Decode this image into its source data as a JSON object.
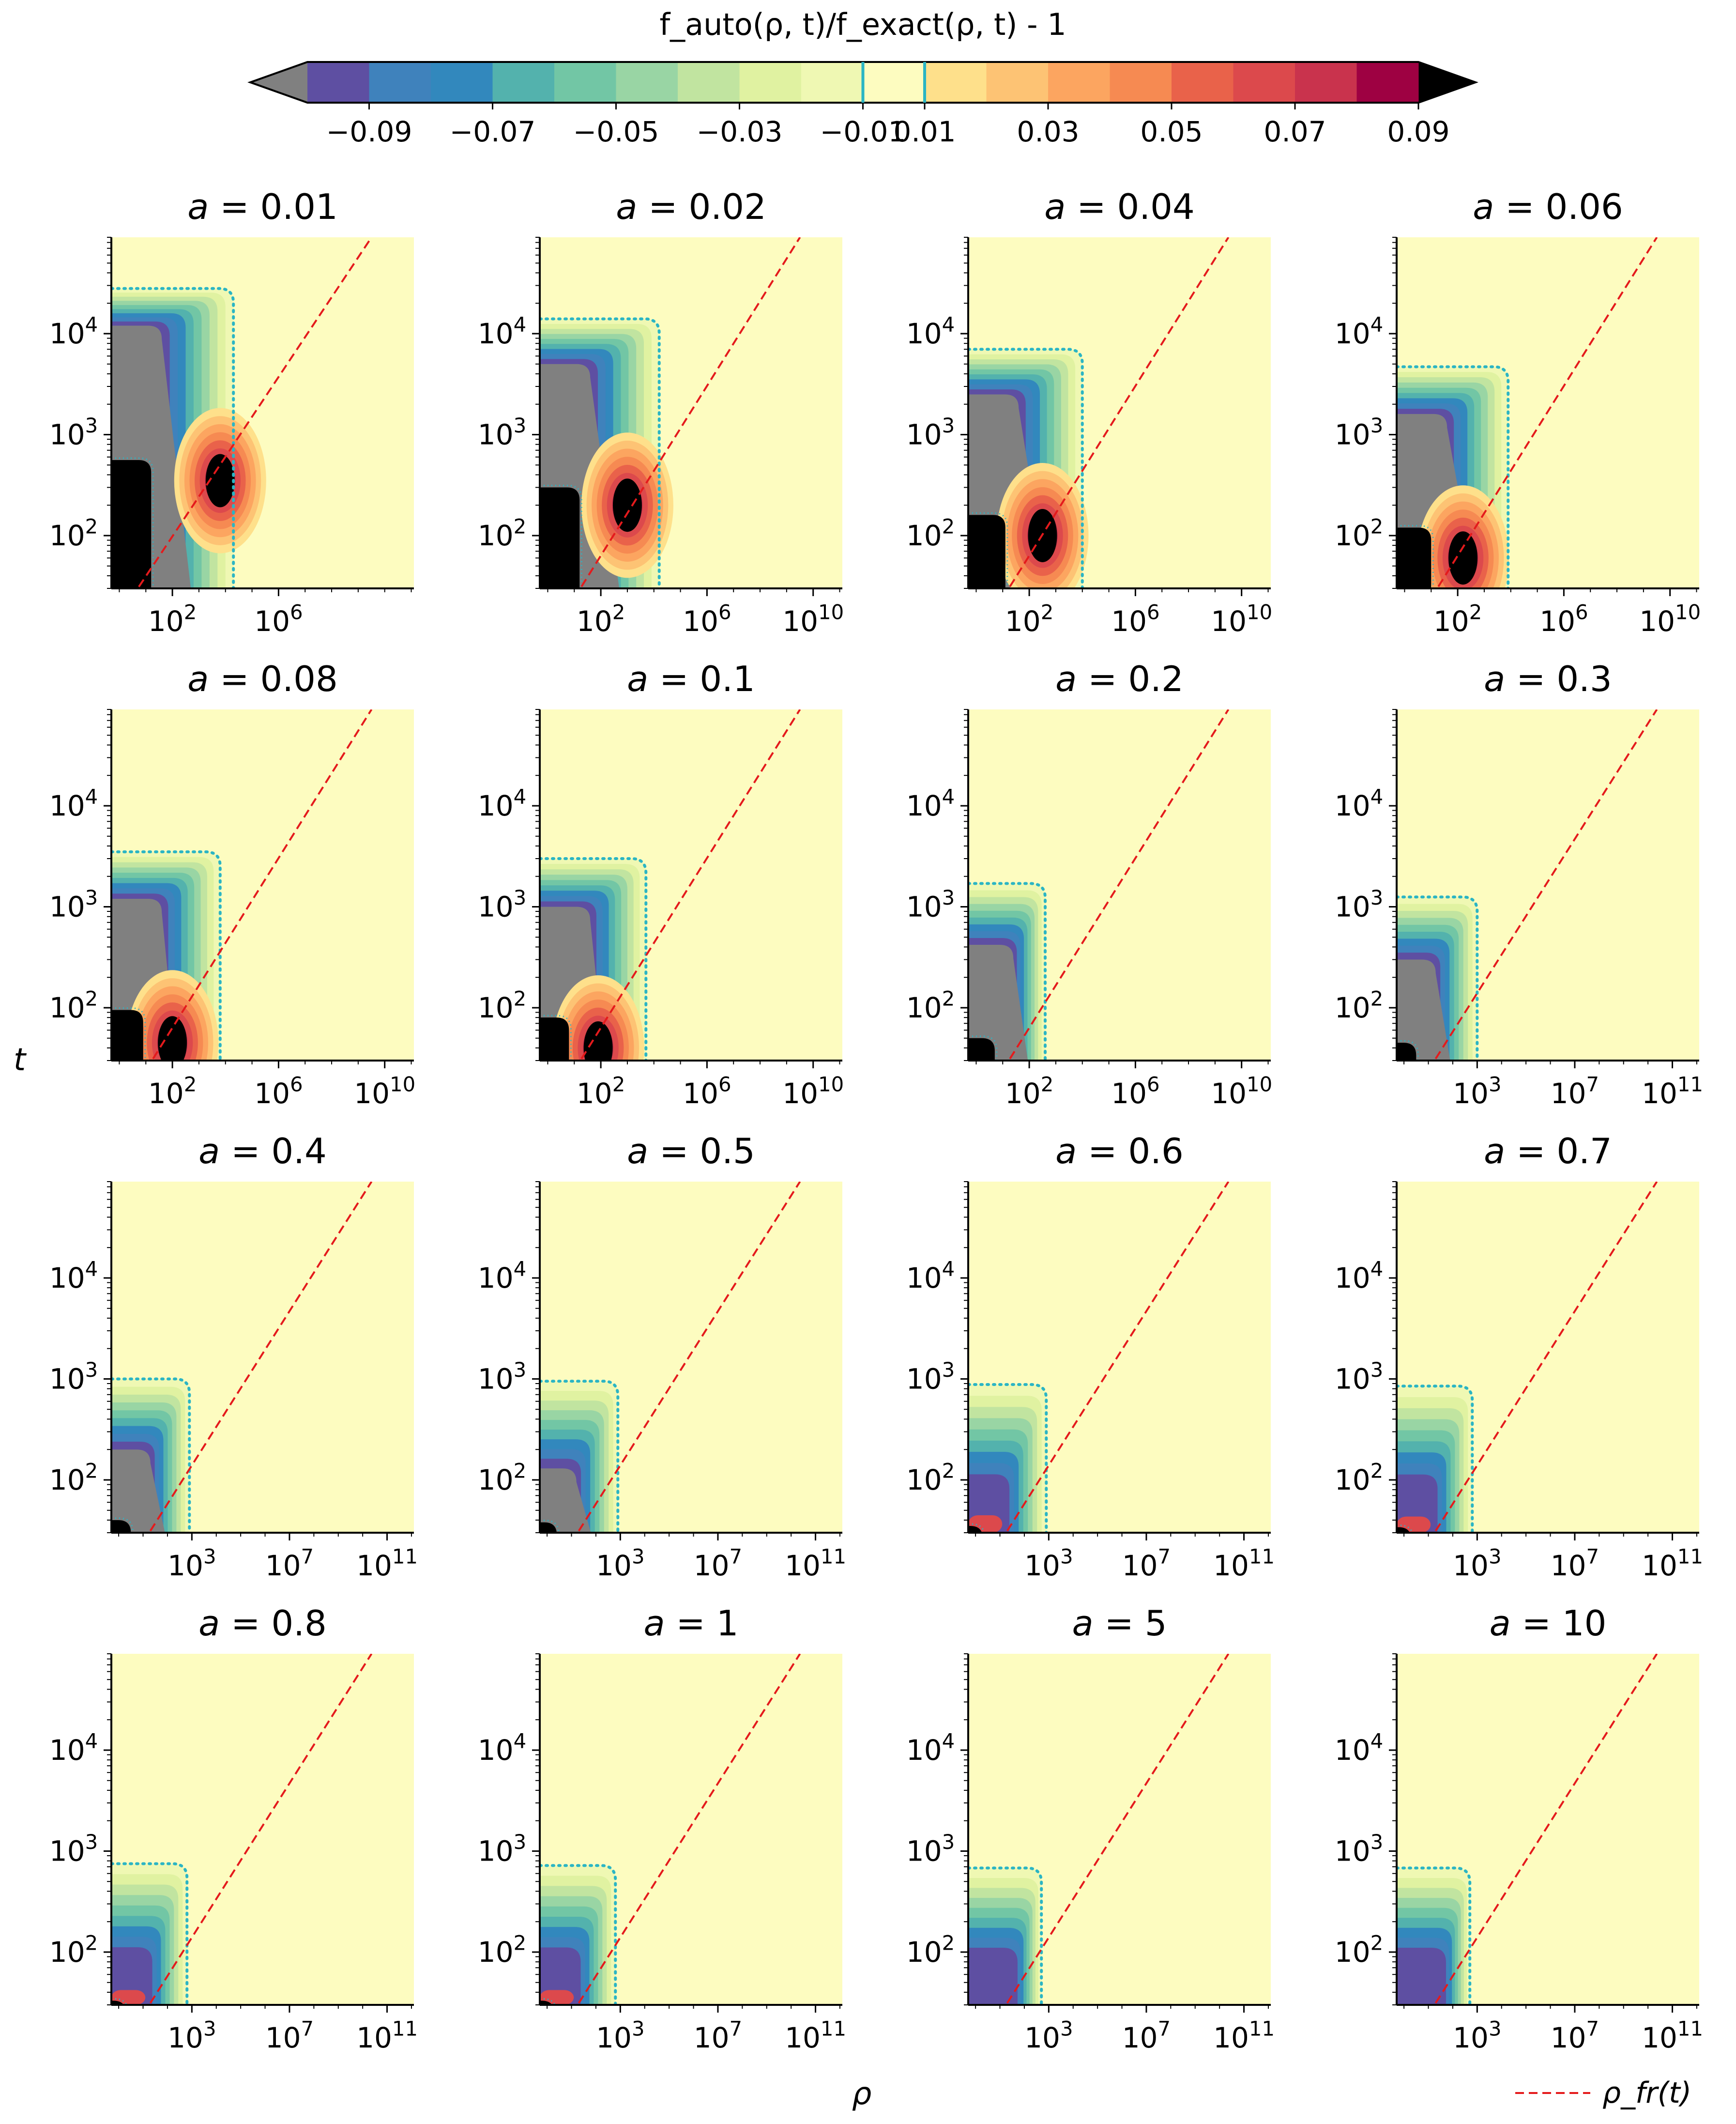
{
  "colorbar": {
    "title": "f_auto(ρ, t)/f_exact(ρ, t) - 1",
    "tick_labels": [
      "−0.09",
      "−0.07",
      "−0.05",
      "−0.03",
      "−0.01",
      "0.01",
      "0.03",
      "0.05",
      "0.07",
      "0.09"
    ],
    "levels": [
      -0.1,
      -0.09,
      -0.08,
      -0.07,
      -0.06,
      -0.05,
      -0.04,
      -0.03,
      -0.02,
      -0.01,
      0.01,
      0.02,
      0.03,
      0.04,
      0.05,
      0.06,
      0.07,
      0.08,
      0.09,
      0.1
    ],
    "colors": [
      "#5e4fa2",
      "#3f82bc",
      "#3288bd",
      "#53b2ad",
      "#72c6a5",
      "#99d5a4",
      "#c1e4a0",
      "#e0f2a1",
      "#eff8b3",
      "#fdfcc0",
      "#fee08b",
      "#fdc374",
      "#fca560",
      "#f68a52",
      "#e9624a",
      "#dc494c",
      "#c9334d",
      "#9e0142"
    ],
    "under_color": "#808080",
    "over_color": "#000000",
    "boundary_color": "#2bb5c4"
  },
  "y_axis_label": "t",
  "x_axis_label": "ρ",
  "legend": {
    "label": "ρ_fr(t)",
    "line_color": "#e41a1c"
  },
  "chart_data": {
    "type": "heatmap",
    "description": "16 contour panels of relative error f_auto/f_exact - 1 over log ρ (x) and log t (y)",
    "ylim": [
      30,
      90000
    ],
    "y_ticks": [
      "10^2",
      "10^3",
      "10^4"
    ],
    "panels": [
      {
        "a": "0.01",
        "title": "a = 0.01",
        "xlim": [
          1,
          10000000000.0
        ],
        "x_ticks": [
          "10^2",
          "10^6"
        ],
        "gray_top_t": 12000,
        "gray_right_logrho": 1.6,
        "black_top_t": 560,
        "black_right_logrho": 1.2,
        "outer_top_t": 28000,
        "outer_right_logrho": 4.3,
        "hot_spot_logrho": 3.8,
        "hot_spot_t": 350
      },
      {
        "a": "0.02",
        "title": "a = 0.02",
        "xlim": [
          1,
          10000000000.0
        ],
        "x_ticks": [
          "10^2",
          "10^6",
          "10^10"
        ],
        "gray_top_t": 5000,
        "gray_right_logrho": 1.6,
        "black_top_t": 300,
        "black_right_logrho": 1.2,
        "outer_top_t": 14000,
        "outer_right_logrho": 4.2,
        "hot_spot_logrho": 3.0,
        "hot_spot_t": 200
      },
      {
        "a": "0.04",
        "title": "a = 0.04",
        "xlim": [
          1,
          10000000000.0
        ],
        "x_ticks": [
          "10^2",
          "10^6",
          "10^10"
        ],
        "gray_top_t": 2500,
        "gray_right_logrho": 1.6,
        "black_top_t": 160,
        "black_right_logrho": 1.1,
        "outer_top_t": 7000,
        "outer_right_logrho": 4.0,
        "hot_spot_logrho": 2.5,
        "hot_spot_t": 100
      },
      {
        "a": "0.06",
        "title": "a = 0.06",
        "xlim": [
          1,
          10000000000.0
        ],
        "x_ticks": [
          "10^2",
          "10^6",
          "10^10"
        ],
        "gray_top_t": 1600,
        "gray_right_logrho": 1.6,
        "black_top_t": 120,
        "black_right_logrho": 1.0,
        "outer_top_t": 4700,
        "outer_right_logrho": 3.9,
        "hot_spot_logrho": 2.2,
        "hot_spot_t": 60
      },
      {
        "a": "0.08",
        "title": "a = 0.08",
        "xlim": [
          1,
          10000000000.0
        ],
        "x_ticks": [
          "10^2",
          "10^6",
          "10^10"
        ],
        "gray_top_t": 1200,
        "gray_right_logrho": 1.6,
        "black_top_t": 95,
        "black_right_logrho": 0.9,
        "outer_top_t": 3500,
        "outer_right_logrho": 3.8,
        "hot_spot_logrho": 2.0,
        "hot_spot_t": 45
      },
      {
        "a": "0.1",
        "title": "a = 0.1",
        "xlim": [
          1,
          10000000000.0
        ],
        "x_ticks": [
          "10^2",
          "10^6",
          "10^10"
        ],
        "gray_top_t": 1000,
        "gray_right_logrho": 1.6,
        "black_top_t": 80,
        "black_right_logrho": 0.8,
        "outer_top_t": 3000,
        "outer_right_logrho": 3.7,
        "hot_spot_logrho": 1.9,
        "hot_spot_t": 40
      },
      {
        "a": "0.2",
        "title": "a = 0.2",
        "xlim": [
          1,
          10000000000.0
        ],
        "x_ticks": [
          "10^2",
          "10^6",
          "10^10"
        ],
        "gray_top_t": 420,
        "gray_right_logrho": 1.4,
        "black_top_t": 50,
        "black_right_logrho": 0.7,
        "outer_top_t": 1700,
        "outer_right_logrho": 2.6,
        "hot_spot_logrho": null,
        "hot_spot_t": null
      },
      {
        "a": "0.3",
        "title": "a = 0.3",
        "xlim": [
          1,
          100000000000.0
        ],
        "x_ticks": [
          "10^3",
          "10^7",
          "10^11"
        ],
        "gray_top_t": 300,
        "gray_right_logrho": 1.3,
        "black_top_t": 45,
        "black_right_logrho": 0.5,
        "outer_top_t": 1250,
        "outer_right_logrho": 3.0,
        "hot_spot_logrho": null,
        "hot_spot_t": null
      },
      {
        "a": "0.4",
        "title": "a = 0.4",
        "xlim": [
          1,
          100000000000.0
        ],
        "x_ticks": [
          "10^3",
          "10^7",
          "10^11"
        ],
        "gray_top_t": 200,
        "gray_right_logrho": 1.3,
        "black_top_t": 40,
        "black_right_logrho": 0.5,
        "outer_top_t": 1000,
        "outer_right_logrho": 2.9,
        "hot_spot_logrho": null,
        "hot_spot_t": null
      },
      {
        "a": "0.5",
        "title": "a = 0.5",
        "xlim": [
          1,
          100000000000.0
        ],
        "x_ticks": [
          "10^3",
          "10^7",
          "10^11"
        ],
        "gray_top_t": 130,
        "gray_right_logrho": 1.2,
        "black_top_t": 38,
        "black_right_logrho": 0.4,
        "outer_top_t": 950,
        "outer_right_logrho": 2.9,
        "hot_spot_logrho": null,
        "hot_spot_t": null
      },
      {
        "a": "0.6",
        "title": "a = 0.6",
        "xlim": [
          1,
          100000000000.0
        ],
        "x_ticks": [
          "10^3",
          "10^7",
          "10^11"
        ],
        "gray_top_t": null,
        "gray_right_logrho": null,
        "black_top_t": 35,
        "black_right_logrho": 0.3,
        "outer_top_t": 880,
        "outer_right_logrho": 2.9,
        "hot_spot_logrho": null,
        "hot_spot_t": null
      },
      {
        "a": "0.7",
        "title": "a = 0.7",
        "xlim": [
          1,
          100000000000.0
        ],
        "x_ticks": [
          "10^3",
          "10^7",
          "10^11"
        ],
        "gray_top_t": null,
        "gray_right_logrho": null,
        "black_top_t": 34,
        "black_right_logrho": 0.3,
        "outer_top_t": 850,
        "outer_right_logrho": 2.8,
        "hot_spot_logrho": null,
        "hot_spot_t": null
      },
      {
        "a": "0.8",
        "title": "a = 0.8",
        "xlim": [
          1,
          100000000000.0
        ],
        "x_ticks": [
          "10^3",
          "10^7",
          "10^11"
        ],
        "gray_top_t": null,
        "gray_right_logrho": null,
        "black_top_t": 33,
        "black_right_logrho": 0.3,
        "outer_top_t": 750,
        "outer_right_logrho": 2.8,
        "hot_spot_logrho": null,
        "hot_spot_t": null
      },
      {
        "a": "1",
        "title": "a = 1",
        "xlim": [
          1,
          100000000000.0
        ],
        "x_ticks": [
          "10^3",
          "10^7",
          "10^11"
        ],
        "gray_top_t": null,
        "gray_right_logrho": null,
        "black_top_t": 33,
        "black_right_logrho": 0.3,
        "outer_top_t": 720,
        "outer_right_logrho": 2.8,
        "hot_spot_logrho": null,
        "hot_spot_t": null
      },
      {
        "a": "5",
        "title": "a = 5",
        "xlim": [
          1,
          100000000000.0
        ],
        "x_ticks": [
          "10^3",
          "10^7",
          "10^11"
        ],
        "gray_top_t": null,
        "gray_right_logrho": null,
        "black_top_t": null,
        "black_right_logrho": null,
        "outer_top_t": 680,
        "outer_right_logrho": 2.7,
        "hot_spot_logrho": null,
        "hot_spot_t": null
      },
      {
        "a": "10",
        "title": "a = 10",
        "xlim": [
          1,
          100000000000.0
        ],
        "x_ticks": [
          "10^3",
          "10^7",
          "10^11"
        ],
        "gray_top_t": null,
        "gray_right_logrho": null,
        "black_top_t": null,
        "black_right_logrho": null,
        "outer_top_t": 680,
        "outer_right_logrho": 2.7,
        "hot_spot_logrho": null,
        "hot_spot_t": null
      }
    ],
    "fr_line": {
      "slope_decades_t_per_decade_rho": 0.33,
      "t_at_rho_1": 2.5
    }
  }
}
